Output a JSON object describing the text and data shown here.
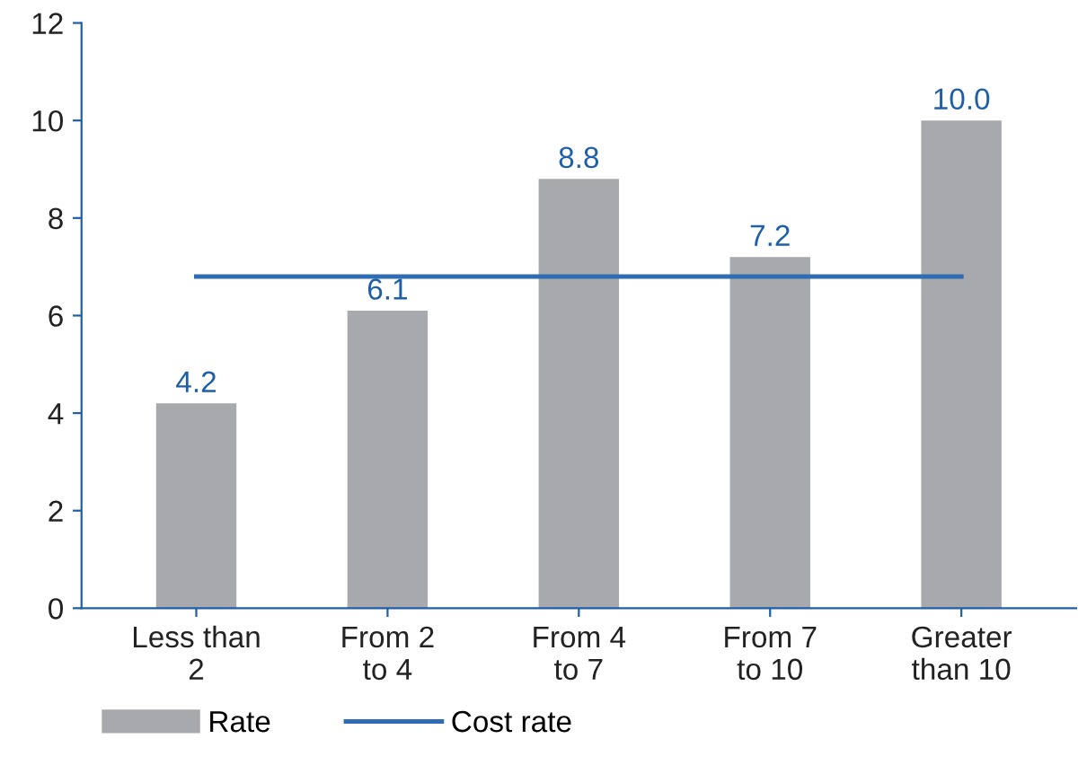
{
  "chart_data": {
    "type": "bar",
    "categories": [
      "Less than\n2",
      "From 2\nto 4",
      "From 4\nto 7",
      "From 7\nto 10",
      "Greater\nthan 10"
    ],
    "series": [
      {
        "name": "Rate",
        "color": "#a7a9ac",
        "values": [
          4.2,
          6.1,
          8.8,
          7.2,
          10.0
        ],
        "value_labels": [
          "4.2",
          "6.1",
          "8.8",
          "7.2",
          "10.0"
        ]
      },
      {
        "name": "Cost rate",
        "type": "line",
        "color": "#2e6db4",
        "values": [
          6.8,
          6.8,
          6.8,
          6.8,
          6.8
        ]
      }
    ],
    "ylim": [
      0,
      12
    ],
    "yticks": [
      0,
      2,
      4,
      6,
      8,
      10,
      12
    ],
    "grid": false,
    "legend": "bottom left",
    "marker": "none",
    "line_style": "solid"
  }
}
